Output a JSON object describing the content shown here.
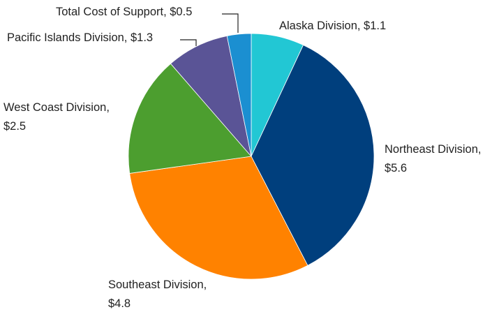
{
  "chart_data": {
    "type": "pie",
    "values": [
      1.1,
      5.6,
      4.8,
      2.5,
      1.3,
      0.5
    ],
    "value_labels": [
      "Alaska Division, $1.1",
      "Northeast Division,\n$5.6",
      "Southeast Division,\n$4.8",
      "West Coast Division,\n$2.5",
      "Pacific Islands Division, $1.3",
      "Total Cost of Support, $0.5"
    ],
    "colors": [
      "#22c7d4",
      "#003f7d",
      "#ff8200",
      "#4c9e2f",
      "#5a5496",
      "#1b8fd1"
    ]
  }
}
